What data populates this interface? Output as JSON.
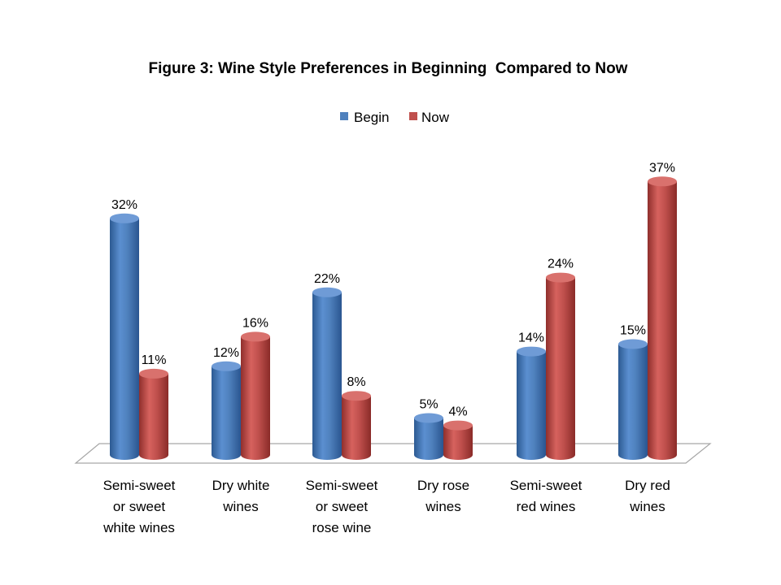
{
  "chart_data": {
    "type": "bar",
    "title": "Figure 3: Wine Style Preferences in Beginning  Compared to Now",
    "categories": [
      [
        "Semi-sweet",
        "or sweet",
        "white wines"
      ],
      [
        "Dry white",
        "wines"
      ],
      [
        "Semi-sweet",
        "or sweet",
        "rose wine"
      ],
      [
        "Dry rose",
        "wines"
      ],
      [
        "Semi-sweet",
        "red wines"
      ],
      [
        "Dry red",
        "wines"
      ]
    ],
    "series": [
      {
        "name": "Begin",
        "values": [
          32,
          12,
          22,
          5,
          14,
          15
        ],
        "labels": [
          "32%",
          "12%",
          "22%",
          "5%",
          "14%",
          "15%"
        ],
        "color": "#4f81bd"
      },
      {
        "name": "Now",
        "values": [
          11,
          16,
          8,
          4,
          24,
          37
        ],
        "labels": [
          "11%",
          "16%",
          "8%",
          "4%",
          "24%",
          "37%"
        ],
        "color": "#c0504d"
      }
    ],
    "value_suffix": "%",
    "ylim": [
      0,
      40
    ],
    "legend_position": "top",
    "grid": false,
    "style": "3d-cylinder"
  }
}
